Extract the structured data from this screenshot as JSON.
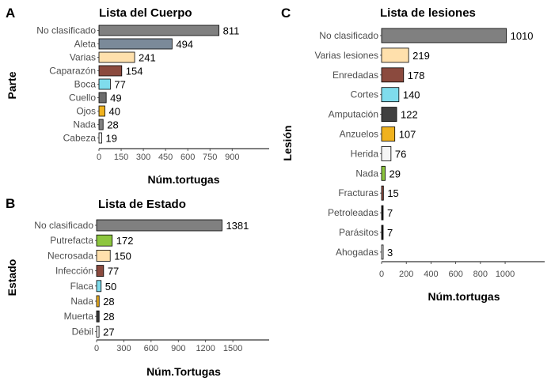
{
  "chart_data": [
    {
      "panel": "A",
      "type": "bar",
      "orientation": "horizontal",
      "title": "Lista del Cuerpo",
      "xlabel": "Núm.tortugas",
      "ylabel": "Parte",
      "categories": [
        "No clasificado",
        "Aleta",
        "Varias",
        "Caparazón",
        "Boca",
        "Cuello",
        "Ojos",
        "Nada",
        "Cabeza"
      ],
      "values": [
        811,
        494,
        241,
        154,
        77,
        49,
        40,
        28,
        19
      ],
      "colors": [
        "#808080",
        "#7b8a99",
        "#ffe0ac",
        "#8b4a3e",
        "#7fdcec",
        "#6b6b6b",
        "#f0b21e",
        "#808080",
        "#f5f5f5"
      ],
      "xticks": [
        0,
        150,
        300,
        450,
        600,
        750,
        900
      ],
      "xlim": [
        0,
        1150
      ]
    },
    {
      "panel": "B",
      "type": "bar",
      "orientation": "horizontal",
      "title": "Lista de Estado",
      "xlabel": "Núm.Tortugas",
      "ylabel": "Estado",
      "categories": [
        "No clasificado",
        "Putrefacta",
        "Necrosada",
        "Infección",
        "Flaca",
        "Nada",
        "Muerta",
        "Débil"
      ],
      "values": [
        1381,
        172,
        150,
        77,
        50,
        28,
        28,
        27
      ],
      "colors": [
        "#808080",
        "#8dc63f",
        "#ffe0ac",
        "#8b4a3e",
        "#7fdcec",
        "#f0b21e",
        "#3c3c3c",
        "#f5f5f5"
      ],
      "xticks": [
        0,
        300,
        600,
        900,
        1200,
        1500
      ],
      "xlim": [
        0,
        1900
      ]
    },
    {
      "panel": "C",
      "type": "bar",
      "orientation": "horizontal",
      "title": "Lista de lesiones",
      "xlabel": "Núm.tortugas",
      "ylabel": "Lesión",
      "categories": [
        "No clasificado",
        "Varias lesiones",
        "Enredadas",
        "Cortes",
        "Amputación",
        "Anzuelos",
        "Herida",
        "Nada",
        "Fracturas",
        "Petroleadas",
        "Parásitos",
        "Ahogadas"
      ],
      "values": [
        1010,
        219,
        178,
        140,
        122,
        107,
        76,
        29,
        15,
        7,
        7,
        3
      ],
      "colors": [
        "#808080",
        "#ffe0ac",
        "#8b4a3e",
        "#7fdcec",
        "#404040",
        "#f0b21e",
        "#f5f5f5",
        "#8dc63f",
        "#8b4a3e",
        "#222222",
        "#222222",
        "#f5f5f5"
      ],
      "xticks": [
        0,
        200,
        400,
        600,
        800,
        1000
      ],
      "xlim": [
        0,
        1320
      ]
    }
  ]
}
